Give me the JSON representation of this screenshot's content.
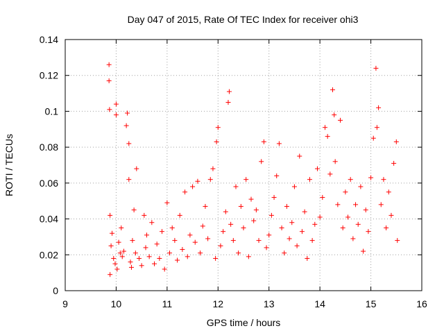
{
  "chart_data": {
    "type": "scatter",
    "title": "Day 047 of 2015, Rate Of TEC Index for receiver ohi3",
    "xlabel": "GPS time / hours",
    "ylabel": "ROTI / TECUs",
    "xlim": [
      9,
      16
    ],
    "ylim": [
      0,
      0.14
    ],
    "xticks": [
      "9",
      "10",
      "11",
      "12",
      "13",
      "14",
      "15",
      "16"
    ],
    "yticks": [
      "0",
      "0.02",
      "0.04",
      "0.06",
      "0.08",
      "0.1",
      "0.12",
      "0.14"
    ],
    "grid": true,
    "marker": "+",
    "color": "#ff0000",
    "series": [
      {
        "name": "ROTI",
        "x": [
          9.86,
          9.86,
          9.87,
          9.88,
          9.88,
          9.9,
          9.92,
          9.95,
          9.98,
          10.0,
          10.0,
          10.02,
          10.05,
          10.08,
          10.1,
          10.12,
          10.15,
          10.2,
          10.22,
          10.25,
          10.25,
          10.28,
          10.3,
          10.32,
          10.35,
          10.38,
          10.4,
          10.45,
          10.5,
          10.55,
          10.58,
          10.6,
          10.65,
          10.7,
          10.75,
          10.8,
          10.85,
          10.9,
          10.95,
          11.0,
          11.05,
          11.1,
          11.15,
          11.2,
          11.25,
          11.3,
          11.35,
          11.4,
          11.45,
          11.5,
          11.55,
          11.6,
          11.65,
          11.7,
          11.75,
          11.8,
          11.85,
          11.9,
          11.95,
          11.97,
          12.0,
          12.05,
          12.1,
          12.15,
          12.2,
          12.22,
          12.25,
          12.3,
          12.35,
          12.4,
          12.45,
          12.5,
          12.55,
          12.6,
          12.65,
          12.7,
          12.75,
          12.8,
          12.85,
          12.9,
          12.95,
          13.0,
          13.05,
          13.1,
          13.15,
          13.2,
          13.25,
          13.3,
          13.35,
          13.4,
          13.45,
          13.5,
          13.55,
          13.6,
          13.65,
          13.7,
          13.75,
          13.8,
          13.85,
          13.9,
          13.95,
          14.0,
          14.05,
          14.1,
          14.15,
          14.2,
          14.25,
          14.28,
          14.3,
          14.35,
          14.4,
          14.45,
          14.5,
          14.55,
          14.6,
          14.65,
          14.7,
          14.75,
          14.8,
          14.85,
          14.9,
          14.95,
          15.0,
          15.05,
          15.1,
          15.12,
          15.15,
          15.2,
          15.25,
          15.3,
          15.35,
          15.4,
          15.45,
          15.5,
          15.52
        ],
        "y": [
          0.126,
          0.117,
          0.101,
          0.042,
          0.009,
          0.025,
          0.032,
          0.018,
          0.015,
          0.104,
          0.098,
          0.012,
          0.027,
          0.021,
          0.035,
          0.019,
          0.022,
          0.092,
          0.099,
          0.062,
          0.082,
          0.016,
          0.013,
          0.028,
          0.045,
          0.021,
          0.068,
          0.018,
          0.014,
          0.042,
          0.024,
          0.031,
          0.019,
          0.038,
          0.015,
          0.026,
          0.018,
          0.033,
          0.012,
          0.049,
          0.021,
          0.035,
          0.028,
          0.017,
          0.042,
          0.023,
          0.055,
          0.019,
          0.031,
          0.058,
          0.027,
          0.061,
          0.021,
          0.036,
          0.047,
          0.029,
          0.062,
          0.068,
          0.018,
          0.083,
          0.091,
          0.025,
          0.033,
          0.044,
          0.105,
          0.111,
          0.037,
          0.028,
          0.058,
          0.021,
          0.047,
          0.035,
          0.062,
          0.019,
          0.051,
          0.039,
          0.045,
          0.028,
          0.072,
          0.083,
          0.024,
          0.031,
          0.042,
          0.052,
          0.064,
          0.082,
          0.035,
          0.021,
          0.047,
          0.029,
          0.038,
          0.058,
          0.025,
          0.075,
          0.033,
          0.044,
          0.018,
          0.062,
          0.028,
          0.037,
          0.068,
          0.041,
          0.052,
          0.091,
          0.086,
          0.065,
          0.112,
          0.098,
          0.072,
          0.048,
          0.095,
          0.035,
          0.055,
          0.041,
          0.062,
          0.029,
          0.048,
          0.037,
          0.058,
          0.022,
          0.045,
          0.033,
          0.063,
          0.085,
          0.124,
          0.091,
          0.102,
          0.048,
          0.062,
          0.035,
          0.055,
          0.042,
          0.071,
          0.083,
          0.028
        ]
      }
    ]
  }
}
